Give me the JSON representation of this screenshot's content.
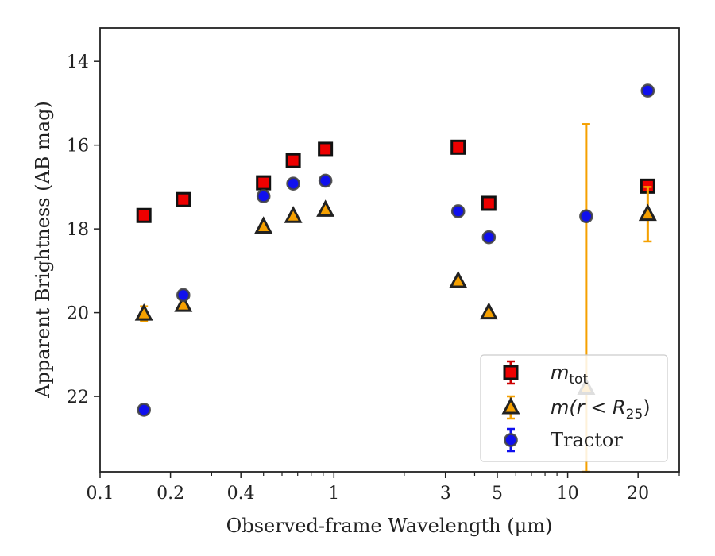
{
  "chart_data": {
    "type": "scatter",
    "xlabel": "Observed-frame Wavelength (μm)",
    "ylabel": "Apparent Brightness (AB mag)",
    "x_scale": "log",
    "xlim": [
      0.1,
      30
    ],
    "ylim": [
      23.8,
      13.2
    ],
    "y_inverted": true,
    "x_ticks": [
      {
        "value": 0.1,
        "label": "0.1"
      },
      {
        "value": 0.2,
        "label": "0.2"
      },
      {
        "value": 0.4,
        "label": "0.4"
      },
      {
        "value": 1,
        "label": "1"
      },
      {
        "value": 3,
        "label": "3"
      },
      {
        "value": 5,
        "label": "5"
      },
      {
        "value": 10,
        "label": "10"
      },
      {
        "value": 20,
        "label": "20"
      }
    ],
    "y_ticks": [
      {
        "value": 14,
        "label": "14"
      },
      {
        "value": 16,
        "label": "16"
      },
      {
        "value": 18,
        "label": "18"
      },
      {
        "value": 20,
        "label": "20"
      },
      {
        "value": 22,
        "label": "22"
      }
    ],
    "grid": false,
    "legend_position": "lower-right",
    "series": [
      {
        "name": "m_tot",
        "legend_main": "m",
        "legend_sub": "tot",
        "marker": "square",
        "fill": "#ee0000",
        "edge": "#111111",
        "errcolor": "#cc0000",
        "points": [
          {
            "x": 0.154,
            "y": 17.68,
            "err": 0.08
          },
          {
            "x": 0.227,
            "y": 17.3,
            "err": 0.06
          },
          {
            "x": 0.5,
            "y": 16.9,
            "err": 0.05
          },
          {
            "x": 0.67,
            "y": 16.37,
            "err": 0.05
          },
          {
            "x": 0.92,
            "y": 16.1,
            "err": 0.05
          },
          {
            "x": 3.4,
            "y": 16.05,
            "err": 0.05
          },
          {
            "x": 4.6,
            "y": 17.39,
            "err": 0.05
          },
          {
            "x": 22,
            "y": 16.98,
            "err": 0.06
          }
        ]
      },
      {
        "name": "m(r < R_25)",
        "legend_main": "m(r < R",
        "legend_sub": "25",
        "legend_tail": ")",
        "marker": "triangle",
        "fill": "#f5a000",
        "edge": "#222222",
        "errcolor": "#f5a000",
        "points": [
          {
            "x": 0.154,
            "y": 20.03,
            "err": 0.18
          },
          {
            "x": 0.227,
            "y": 19.82,
            "err": 0.08
          },
          {
            "x": 0.5,
            "y": 17.95,
            "err": 0.05
          },
          {
            "x": 0.67,
            "y": 17.7,
            "err": 0.05
          },
          {
            "x": 0.92,
            "y": 17.55,
            "err": 0.05
          },
          {
            "x": 3.4,
            "y": 19.25,
            "err": 0.05
          },
          {
            "x": 4.6,
            "y": 20.0,
            "err": 0.05
          },
          {
            "x": 12,
            "y": 21.8,
            "err": 6.3
          },
          {
            "x": 22,
            "y": 17.65,
            "err": 0.65
          }
        ]
      },
      {
        "name": "Tractor",
        "marker": "circle",
        "fill": "#1010ee",
        "edge": "#444444",
        "errcolor": "#1010ee",
        "points": [
          {
            "x": 0.154,
            "y": 22.32,
            "err": 0.05
          },
          {
            "x": 0.227,
            "y": 19.58,
            "err": 0.05
          },
          {
            "x": 0.5,
            "y": 17.22,
            "err": 0.05
          },
          {
            "x": 0.67,
            "y": 16.92,
            "err": 0.05
          },
          {
            "x": 0.92,
            "y": 16.85,
            "err": 0.05
          },
          {
            "x": 3.4,
            "y": 17.58,
            "err": 0.05
          },
          {
            "x": 4.6,
            "y": 18.2,
            "err": 0.05
          },
          {
            "x": 12,
            "y": 17.7,
            "err": 0.05
          },
          {
            "x": 22,
            "y": 14.7,
            "err": 0.05
          }
        ]
      }
    ]
  }
}
